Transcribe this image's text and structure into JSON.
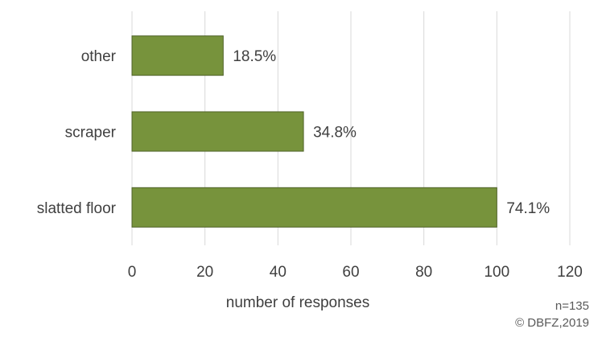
{
  "chart_data": {
    "type": "bar",
    "orientation": "horizontal",
    "categories": [
      "other",
      "scraper",
      "slatted floor"
    ],
    "values": [
      25,
      47,
      100
    ],
    "data_labels": [
      "18.5%",
      "34.8%",
      "74.1%"
    ],
    "xlabel": "number of responses",
    "ylabel": "",
    "xlim": [
      0,
      120
    ],
    "xticks": [
      0,
      20,
      40,
      60,
      80,
      100,
      120
    ],
    "grid": "vertical",
    "bar_color": "#77933C",
    "bar_edge_color": "#4F6228",
    "gridline_color": "#D9D9D9"
  },
  "notes": {
    "sample_size": "n=135",
    "copyright": "© DBFZ,2019"
  }
}
